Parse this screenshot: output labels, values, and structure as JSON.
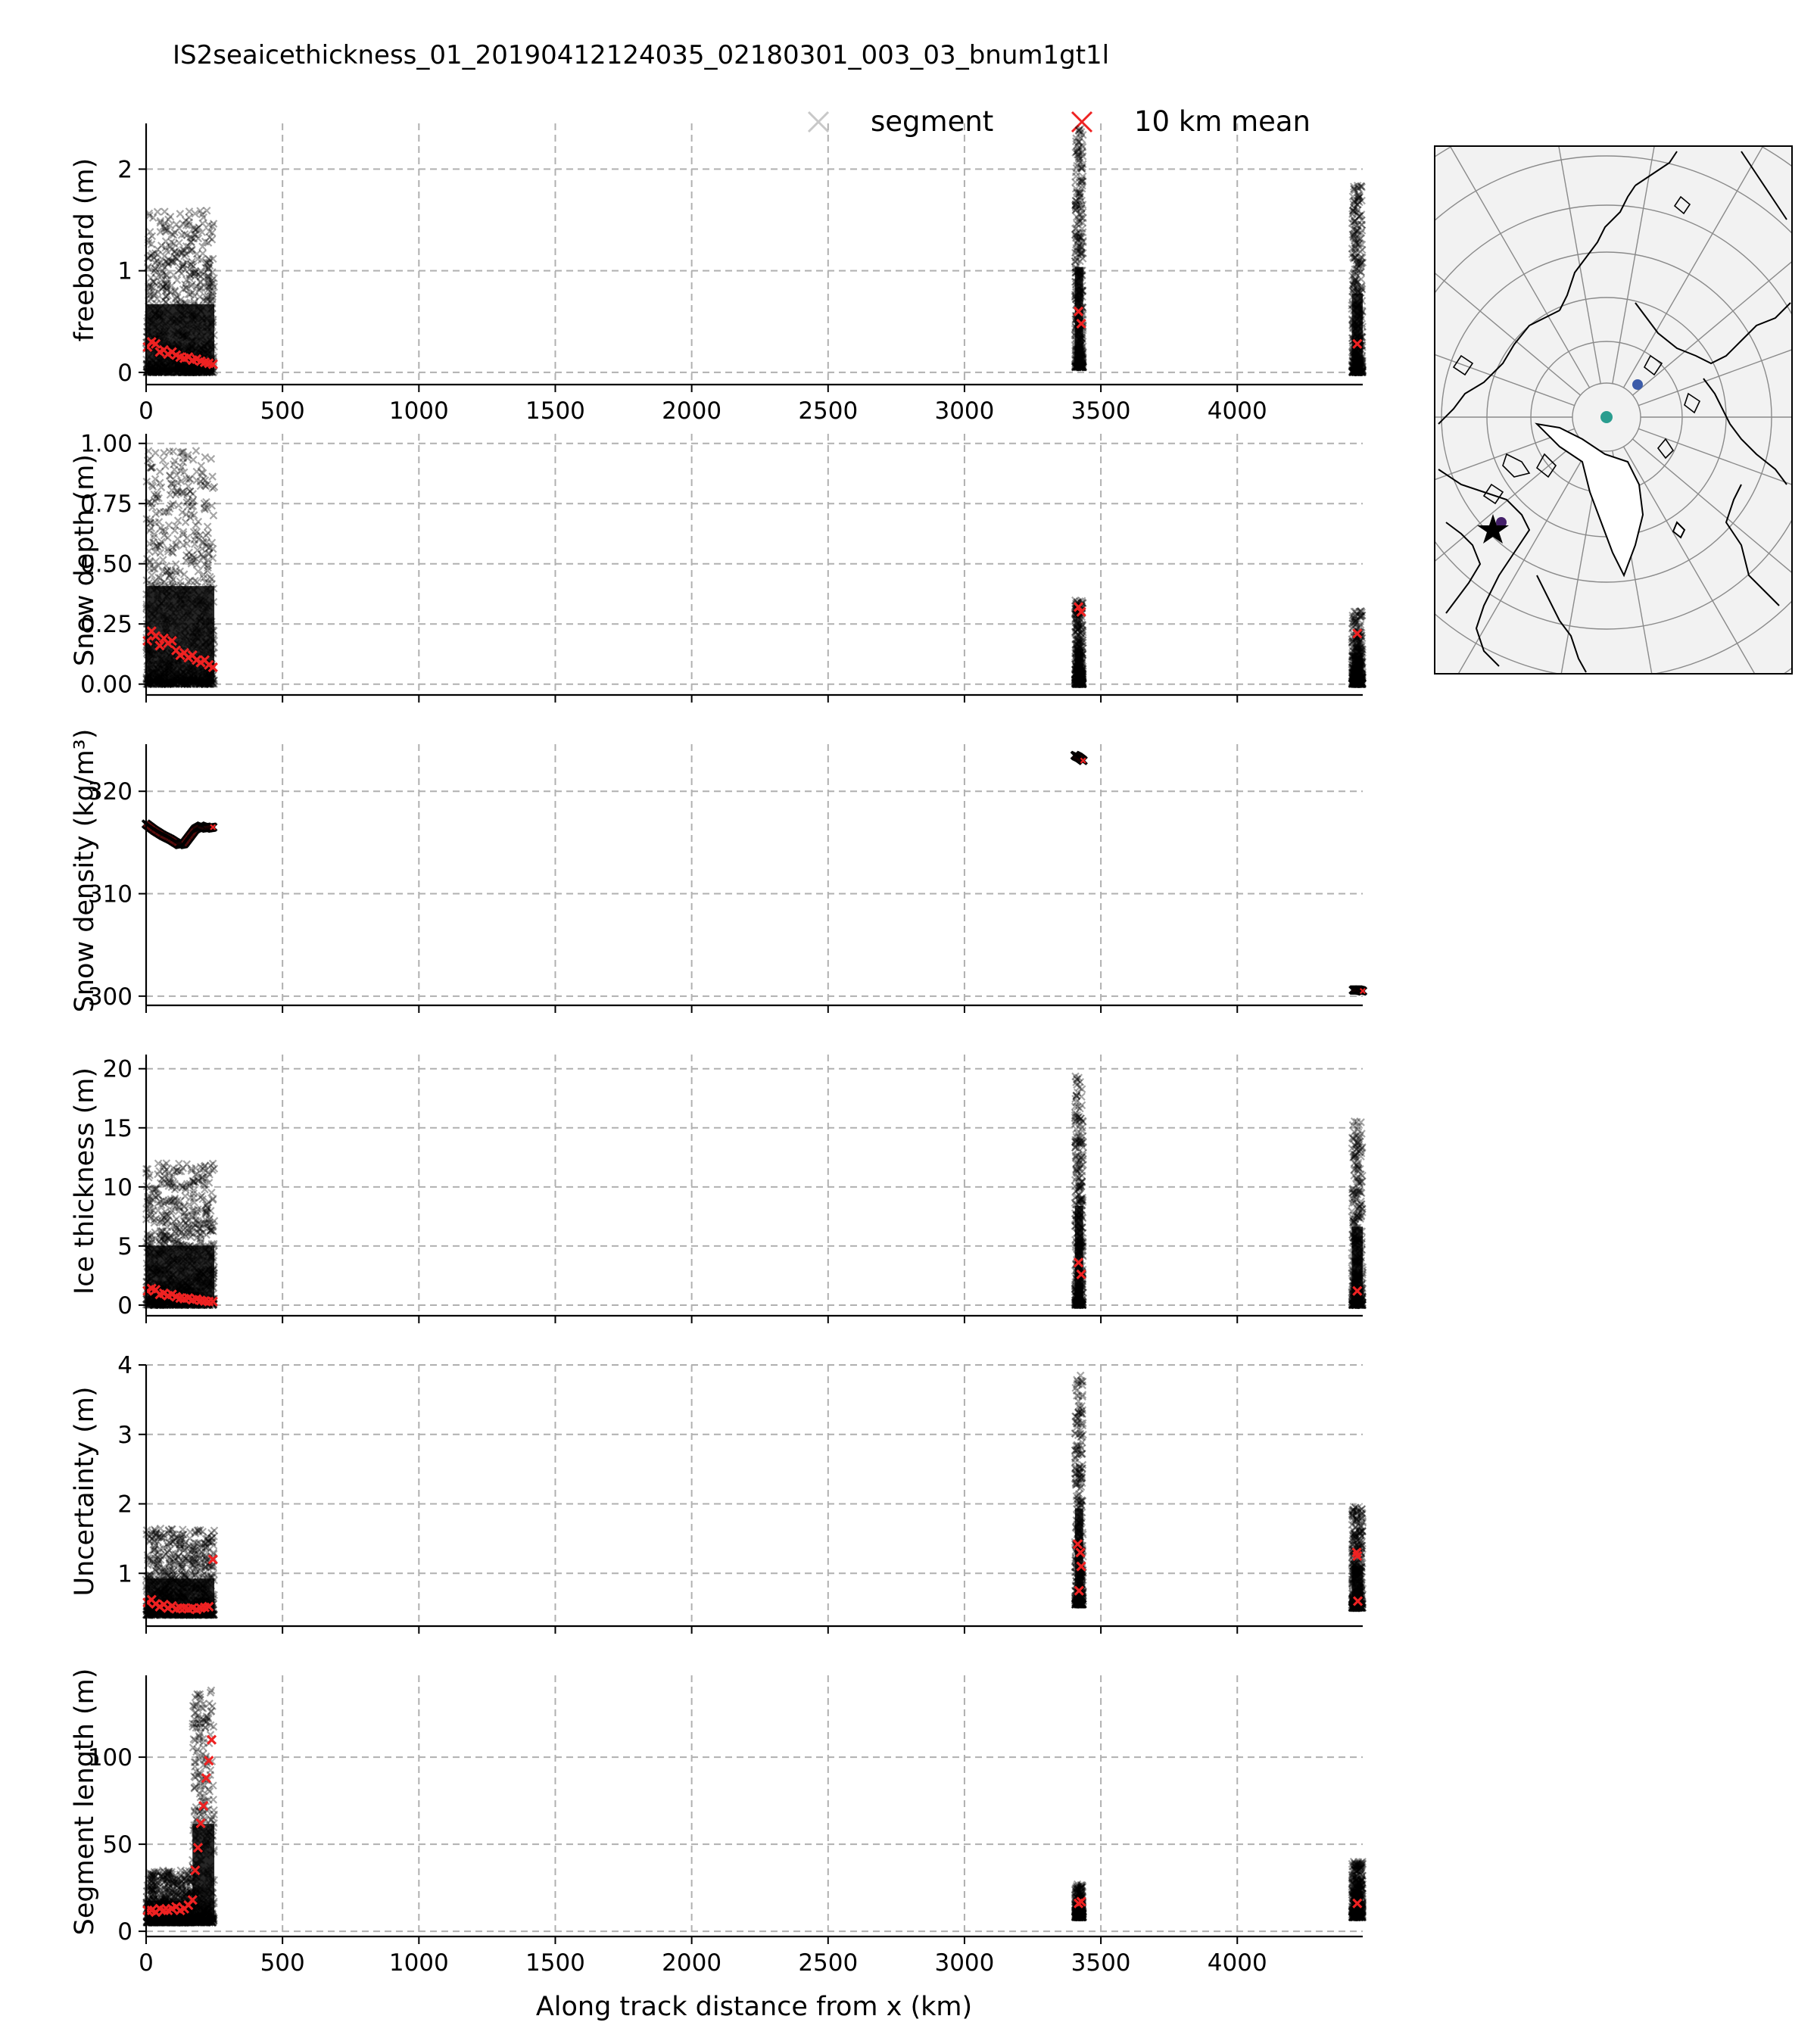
{
  "figure": {
    "title": "IS2seaicethickness_01_20190412124035_02180301_003_03_bnum1gt1l",
    "xlabel": "Along track distance from x (km)",
    "legend": {
      "segment": "segment",
      "mean": "10 km mean"
    }
  },
  "colors": {
    "segment": "#000000",
    "segment_legend": "#c8c8c8",
    "mean": "#ee2222",
    "grid": "#b0b0b0",
    "land": "#f2f2f2",
    "marker_teal": "#2a9d8f",
    "marker_blue": "#3b5ba9",
    "marker_purple": "#44206a"
  },
  "chart_data": [
    {
      "type": "scatter",
      "name": "freeboard",
      "ylabel": "freeboard (m)",
      "xlim": [
        0,
        4460
      ],
      "ylim": [
        -0.12,
        2.45
      ],
      "yticks": [
        0,
        1,
        2
      ],
      "ytick_labels": [
        "0",
        "1",
        "2"
      ],
      "xticks": [
        0,
        500,
        1000,
        1500,
        2000,
        2500,
        3000,
        3500,
        4000
      ],
      "xtick_labels": [
        "0",
        "500",
        "1000",
        "1500",
        "2000",
        "2500",
        "3000",
        "3500",
        "4000"
      ],
      "grid": true,
      "segment_groups": [
        {
          "x_range": [
            0,
            250
          ],
          "y_range": [
            0.0,
            1.6
          ]
        },
        {
          "x_range": [
            3405,
            3435
          ],
          "y_range": [
            0.05,
            2.4
          ]
        },
        {
          "x_range": [
            4420,
            4460
          ],
          "y_range": [
            0.0,
            1.85
          ]
        }
      ],
      "mean": {
        "x": [
          5,
          20,
          35,
          50,
          65,
          80,
          95,
          110,
          125,
          140,
          155,
          170,
          185,
          200,
          215,
          230,
          245,
          3418,
          3428,
          4440
        ],
        "y": [
          0.25,
          0.3,
          0.28,
          0.2,
          0.22,
          0.18,
          0.2,
          0.17,
          0.15,
          0.14,
          0.15,
          0.12,
          0.13,
          0.11,
          0.1,
          0.09,
          0.08,
          0.6,
          0.48,
          0.28
        ]
      }
    },
    {
      "type": "scatter",
      "name": "snow_depth",
      "ylabel": "Snow depth (m)",
      "xlim": [
        0,
        4460
      ],
      "ylim": [
        -0.045,
        1.04
      ],
      "yticks": [
        0,
        0.25,
        0.5,
        0.75,
        1.0
      ],
      "ytick_labels": [
        "0.00",
        "0.25",
        "0.50",
        "0.75",
        "1.00"
      ],
      "xticks": [
        0,
        500,
        1000,
        1500,
        2000,
        2500,
        3000,
        3500,
        4000
      ],
      "xtick_labels": [],
      "grid": true,
      "segment_groups": [
        {
          "x_range": [
            0,
            250
          ],
          "y_range": [
            0.0,
            0.97
          ]
        },
        {
          "x_range": [
            3405,
            3435
          ],
          "y_range": [
            0.0,
            0.35
          ]
        },
        {
          "x_range": [
            4420,
            4460
          ],
          "y_range": [
            0.0,
            0.31
          ]
        }
      ],
      "mean": {
        "x": [
          5,
          20,
          35,
          50,
          65,
          80,
          95,
          110,
          125,
          140,
          155,
          170,
          185,
          200,
          215,
          230,
          245,
          3418,
          3428,
          4440
        ],
        "y": [
          0.18,
          0.22,
          0.2,
          0.16,
          0.19,
          0.17,
          0.18,
          0.14,
          0.12,
          0.13,
          0.11,
          0.12,
          0.1,
          0.09,
          0.1,
          0.08,
          0.07,
          0.32,
          0.3,
          0.21
        ]
      }
    },
    {
      "type": "scatter",
      "name": "snow_density",
      "ylabel": "Snow density (kg/m³)",
      "xlim": [
        0,
        4460
      ],
      "ylim": [
        299.1,
        324.6
      ],
      "yticks": [
        300,
        310,
        320
      ],
      "ytick_labels": [
        "300",
        "310",
        "320"
      ],
      "xticks": [
        0,
        500,
        1000,
        1500,
        2000,
        2500,
        3000,
        3500,
        4000
      ],
      "xtick_labels": [],
      "grid": true,
      "segments": {
        "x": [
          0,
          30,
          60,
          90,
          120,
          140,
          160,
          180,
          200,
          220,
          245,
          3405,
          3420,
          3435,
          4425,
          4445,
          4460
        ],
        "y": [
          316.8,
          316.2,
          315.7,
          315.3,
          314.8,
          314.9,
          315.6,
          316.3,
          316.6,
          316.4,
          316.5,
          323.5,
          323.3,
          323.0,
          300.6,
          300.6,
          300.5
        ]
      }
    },
    {
      "type": "scatter",
      "name": "ice_thickness",
      "ylabel": "Ice thickness (m)",
      "xlim": [
        0,
        4460
      ],
      "ylim": [
        -0.9,
        21.2
      ],
      "yticks": [
        0,
        5,
        10,
        15,
        20
      ],
      "ytick_labels": [
        "0",
        "5",
        "10",
        "15",
        "20"
      ],
      "xticks": [
        0,
        500,
        1000,
        1500,
        2000,
        2500,
        3000,
        3500,
        4000
      ],
      "xtick_labels": [],
      "grid": true,
      "segment_groups": [
        {
          "x_range": [
            0,
            250
          ],
          "y_range": [
            0.0,
            12.0
          ]
        },
        {
          "x_range": [
            3405,
            3435
          ],
          "y_range": [
            0.0,
            20.0
          ]
        },
        {
          "x_range": [
            4420,
            4460
          ],
          "y_range": [
            0.0,
            15.8
          ]
        }
      ],
      "mean": {
        "x": [
          5,
          20,
          35,
          50,
          65,
          80,
          95,
          110,
          125,
          140,
          155,
          170,
          185,
          200,
          215,
          230,
          245,
          3418,
          3428,
          4440
        ],
        "y": [
          1.2,
          1.4,
          1.3,
          0.9,
          1.0,
          0.8,
          0.9,
          0.7,
          0.6,
          0.55,
          0.6,
          0.45,
          0.5,
          0.4,
          0.35,
          0.3,
          0.3,
          3.6,
          2.6,
          1.2
        ]
      }
    },
    {
      "type": "scatter",
      "name": "uncertainty",
      "ylabel": "Uncertainty (m)",
      "xlim": [
        0,
        4460
      ],
      "ylim": [
        0.24,
        4.0
      ],
      "yticks": [
        1,
        2,
        3,
        4
      ],
      "ytick_labels": [
        "1",
        "2",
        "3",
        "4"
      ],
      "xticks": [
        0,
        500,
        1000,
        1500,
        2000,
        2500,
        3000,
        3500,
        4000
      ],
      "xtick_labels": [],
      "grid": true,
      "segment_groups": [
        {
          "x_range": [
            0,
            250
          ],
          "y_range": [
            0.4,
            1.65
          ]
        },
        {
          "x_range": [
            3405,
            3435
          ],
          "y_range": [
            0.55,
            3.85
          ]
        },
        {
          "x_range": [
            4420,
            4460
          ],
          "y_range": [
            0.5,
            1.95
          ]
        }
      ],
      "mean": {
        "x": [
          5,
          20,
          35,
          50,
          65,
          80,
          95,
          110,
          125,
          140,
          155,
          170,
          185,
          200,
          215,
          230,
          245,
          3415,
          3425,
          3420,
          3428,
          4438,
          4442,
          4440
        ],
        "y": [
          0.58,
          0.62,
          0.56,
          0.52,
          0.55,
          0.5,
          0.53,
          0.49,
          0.5,
          0.5,
          0.49,
          0.5,
          0.48,
          0.5,
          0.51,
          0.52,
          1.2,
          1.42,
          1.3,
          0.75,
          1.1,
          1.3,
          0.6,
          1.25
        ]
      }
    },
    {
      "type": "scatter",
      "name": "segment_length",
      "ylabel": "Segment length (m)",
      "xlim": [
        0,
        4460
      ],
      "ylim": [
        -3,
        147
      ],
      "yticks": [
        0,
        50,
        100
      ],
      "ytick_labels": [
        "0",
        "50",
        "100"
      ],
      "xticks": [
        0,
        500,
        1000,
        1500,
        2000,
        2500,
        3000,
        3500,
        4000
      ],
      "xtick_labels": [
        "0",
        "500",
        "1000",
        "1500",
        "2000",
        "2500",
        "3000",
        "3500",
        "4000"
      ],
      "grid": true,
      "segment_groups": [
        {
          "x_range": [
            0,
            170
          ],
          "y_range": [
            5,
            35
          ]
        },
        {
          "x_range": [
            170,
            250
          ],
          "y_range": [
            5,
            140
          ]
        },
        {
          "x_range": [
            3405,
            3435
          ],
          "y_range": [
            8,
            27
          ]
        },
        {
          "x_range": [
            4420,
            4460
          ],
          "y_range": [
            8,
            40
          ]
        }
      ],
      "mean": {
        "x": [
          5,
          20,
          35,
          50,
          65,
          80,
          95,
          110,
          125,
          140,
          155,
          170,
          180,
          190,
          200,
          210,
          220,
          230,
          240,
          3418,
          3428,
          4440
        ],
        "y": [
          12,
          12,
          11,
          13,
          12,
          12,
          13,
          14,
          12,
          13,
          15,
          18,
          35,
          48,
          62,
          72,
          88,
          98,
          110,
          16,
          17,
          16
        ]
      }
    }
  ],
  "map": {
    "type": "polar-stereographic-inset",
    "markers": [
      {
        "label": "track start",
        "shape": "star"
      },
      {
        "label": "segment 2",
        "shape": "dot"
      },
      {
        "label": "segment 3",
        "shape": "dot"
      },
      {
        "label": "north pole",
        "shape": "dot"
      }
    ]
  }
}
